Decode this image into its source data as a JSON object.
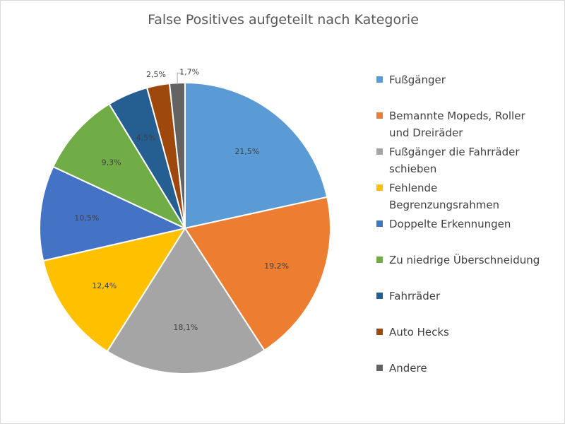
{
  "chart_data": {
    "type": "pie",
    "title": "False Positives aufgeteilt nach Kategorie",
    "legend_position": "right",
    "slices": [
      {
        "name": "Fußgänger",
        "legend_lines": [
          "Fußgänger"
        ],
        "value": 21.5,
        "label": "21,5%",
        "color": "#5b9bd5"
      },
      {
        "name": "Bemannte Mopeds, Roller und Dreiräder",
        "legend_lines": [
          "Bemannte Mopeds, Roller",
          "und Dreiräder"
        ],
        "value": 19.2,
        "label": "19,2%",
        "color": "#ed7d31"
      },
      {
        "name": "Fußgänger die Fahrräder schieben",
        "legend_lines": [
          "Fußgänger die Fahrräder",
          "schieben"
        ],
        "value": 18.1,
        "label": "18,1%",
        "color": "#a5a5a5"
      },
      {
        "name": "Fehlende Begrenzungsrahmen",
        "legend_lines": [
          "Fehlende",
          "Begrenzungsrahmen"
        ],
        "value": 12.4,
        "label": "12,4%",
        "color": "#ffc000"
      },
      {
        "name": "Doppelte Erkennungen",
        "legend_lines": [
          "Doppelte Erkennungen"
        ],
        "value": 10.5,
        "label": "10,5%",
        "color": "#4472c4"
      },
      {
        "name": "Zu niedrige Überschneidung",
        "legend_lines": [
          "Zu niedrige Überschneidung"
        ],
        "value": 9.3,
        "label": "9,3%",
        "color": "#70ad47"
      },
      {
        "name": "Fahrräder",
        "legend_lines": [
          "Fahrräder"
        ],
        "value": 4.5,
        "label": "4,5%",
        "color": "#255e91"
      },
      {
        "name": "Auto Hecks",
        "legend_lines": [
          "Auto Hecks"
        ],
        "value": 2.5,
        "label": "2,5%",
        "color": "#9e480e"
      },
      {
        "name": "Andere",
        "legend_lines": [
          "Andere"
        ],
        "value": 1.7,
        "label": "1,7%",
        "color": "#636363"
      }
    ]
  }
}
